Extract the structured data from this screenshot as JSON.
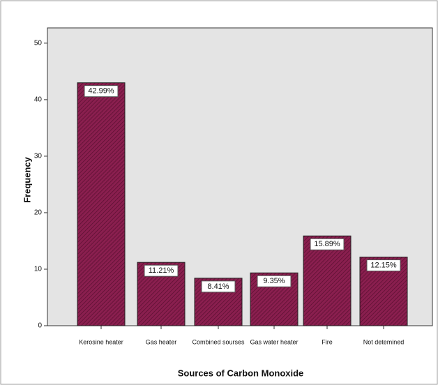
{
  "chart_data": {
    "type": "bar",
    "x_label": "Sources of Carbon Monoxide",
    "y_label": "Frequency",
    "categories": [
      "Kerosine heater",
      "Gas heater",
      "Combined sourses",
      "Gas  water heater",
      "Fire",
      "Not detemined"
    ],
    "values": [
      42.99,
      11.21,
      8.41,
      9.35,
      15.89,
      12.15
    ],
    "value_labels": [
      "42.99%",
      "11.21%",
      "8.41%",
      "9.35%",
      "15.89%",
      "12.15%"
    ],
    "color": "#8a1f4f",
    "ylim": [
      0,
      52.7
    ],
    "yticks": [
      0,
      10,
      20,
      30,
      40,
      50
    ]
  }
}
